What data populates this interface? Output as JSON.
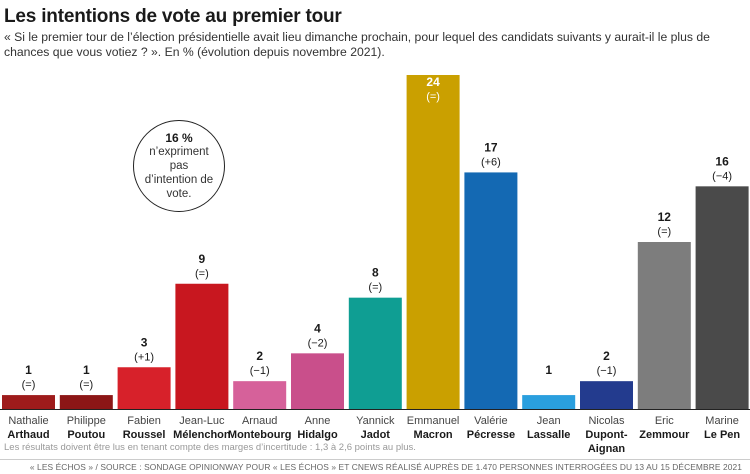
{
  "title": "Les intentions de vote au premier tour",
  "subtitle": "« Si le premier tour de l’élection présidentielle avait lieu dimanche prochain, pour lequel des candidats suivants y aurait-il le plus de chances que vous votiez ? ». En % (évolution depuis novembre 2021).",
  "callout": {
    "value": "16 %",
    "text": "n’expriment pas d’intention de vote."
  },
  "footnote": "Les résultats doivent être lus en tenant compte des marges d’incertitude : 1,3 à 2,6 points au plus.",
  "source": "« LES ÉCHOS » / SOURCE : SONDAGE OPINIONWAY POUR « LES ÉCHOS » ET CNEWS RÉALISÉ AUPRÈS DE 1.470 PERSONNES INTERROGÉES DU 13 AU 15 DÉCEMBRE 2021",
  "chart_data": {
    "type": "bar",
    "ylim": [
      0,
      24
    ],
    "grid": false,
    "categories": [
      {
        "first": "Nathalie",
        "last": "Arthaud"
      },
      {
        "first": "Philippe",
        "last": "Poutou"
      },
      {
        "first": "Fabien",
        "last": "Roussel"
      },
      {
        "first": "Jean-Luc",
        "last": "Mélenchon"
      },
      {
        "first": "Arnaud",
        "last": "Montebourg"
      },
      {
        "first": "Anne",
        "last": "Hidalgo"
      },
      {
        "first": "Yannick",
        "last": "Jadot"
      },
      {
        "first": "Emmanuel",
        "last": "Macron"
      },
      {
        "first": "Valérie",
        "last": "Pécresse"
      },
      {
        "first": "Jean",
        "last": "Lassalle"
      },
      {
        "first": "Nicolas",
        "last": "Dupont-Aignan"
      },
      {
        "first": "Eric",
        "last": "Zemmour"
      },
      {
        "first": "Marine",
        "last": "Le Pen"
      }
    ],
    "values": [
      1,
      1,
      3,
      9,
      2,
      4,
      8,
      24,
      17,
      1,
      2,
      12,
      16
    ],
    "changes": [
      "(=)",
      "(=)",
      "(+1)",
      "(=)",
      "(−1)",
      "(−2)",
      "(=)",
      "(=)",
      "(+6)",
      "",
      "(−1)",
      "(=)",
      "(−4)"
    ],
    "colors": [
      "#9e1b1b",
      "#8c1616",
      "#d7212a",
      "#c8171f",
      "#d6619a",
      "#c94f8b",
      "#0f9e93",
      "#caa000",
      "#1469b3",
      "#2a9fde",
      "#233b8e",
      "#7d7d7d",
      "#4a4a4a"
    ]
  }
}
